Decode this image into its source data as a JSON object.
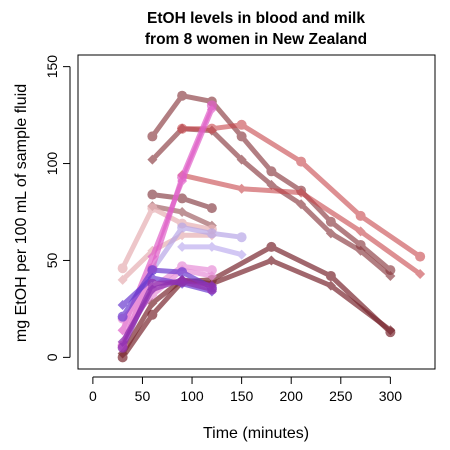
{
  "chart_data": {
    "type": "line",
    "title_lines": [
      "EtOH levels in blood and milk",
      "from 8 women in New Zealand"
    ],
    "xlabel": "Time (minutes)",
    "ylabel": "mg EtOH per 100 mL of sample fluid",
    "xlim": [
      -15,
      345
    ],
    "ylim": [
      -6,
      156
    ],
    "x_ticks": [
      0,
      50,
      100,
      150,
      200,
      250,
      300
    ],
    "y_ticks": [
      0,
      50,
      100,
      150
    ],
    "grid": false,
    "legend": "none",
    "series": [
      {
        "color": "#7A2830",
        "opacity": 0.7,
        "marker": "circle",
        "x": [
          30,
          60,
          90,
          120,
          180,
          240,
          300
        ],
        "y": [
          0,
          22,
          39,
          40,
          57,
          42,
          13
        ]
      },
      {
        "color": "#7A2830",
        "opacity": 0.7,
        "marker": "diamond",
        "x": [
          30,
          60,
          90,
          120,
          180,
          240,
          300
        ],
        "y": [
          2,
          28,
          40,
          38,
          50,
          37,
          14
        ]
      },
      {
        "color": "#8A3A40",
        "opacity": 0.65,
        "marker": "circle",
        "x": [
          60,
          90,
          120,
          150,
          180,
          210,
          240,
          270,
          300
        ],
        "y": [
          114,
          135,
          132,
          114,
          96,
          86,
          70,
          58,
          45
        ]
      },
      {
        "color": "#8A3A40",
        "opacity": 0.65,
        "marker": "diamond",
        "x": [
          60,
          90,
          120,
          150,
          180,
          210,
          240,
          270,
          300
        ],
        "y": [
          102,
          118,
          117,
          102,
          89,
          79,
          64,
          55,
          42
        ]
      },
      {
        "color": "#C8454A",
        "opacity": 0.6,
        "marker": "circle",
        "x": [
          90,
          120,
          150,
          210,
          270,
          330
        ],
        "y": [
          118,
          118,
          120,
          101,
          73,
          52
        ]
      },
      {
        "color": "#C8454A",
        "opacity": 0.6,
        "marker": "diamond",
        "x": [
          90,
          150,
          210,
          270,
          330
        ],
        "y": [
          94,
          87,
          85,
          65,
          43
        ]
      },
      {
        "color": "#7A2830",
        "opacity": 0.6,
        "marker": "circle",
        "x": [
          60,
          90,
          120
        ],
        "y": [
          84,
          82,
          77
        ]
      },
      {
        "color": "#8A3A40",
        "opacity": 0.55,
        "marker": "diamond",
        "x": [
          60,
          90,
          120
        ],
        "y": [
          78,
          75,
          68
        ]
      },
      {
        "color": "#E8B4B8",
        "opacity": 0.75,
        "marker": "circle",
        "x": [
          30,
          60,
          90,
          120
        ],
        "y": [
          46,
          77,
          69,
          66
        ]
      },
      {
        "color": "#E8B4B8",
        "opacity": 0.75,
        "marker": "diamond",
        "x": [
          30,
          60,
          90,
          120
        ],
        "y": [
          40,
          55,
          63,
          63
        ]
      },
      {
        "color": "#B8A8E8",
        "opacity": 0.7,
        "marker": "circle",
        "x": [
          60,
          90,
          120,
          150
        ],
        "y": [
          45,
          67,
          64,
          62
        ]
      },
      {
        "color": "#C0B0F0",
        "opacity": 0.7,
        "marker": "diamond",
        "x": [
          90,
          120,
          150
        ],
        "y": [
          57,
          57,
          53
        ]
      },
      {
        "color": "#E060C8",
        "opacity": 0.7,
        "marker": "circle",
        "x": [
          30,
          60,
          90,
          120
        ],
        "y": [
          6,
          46,
          93,
          130
        ]
      },
      {
        "color": "#E060C8",
        "opacity": 0.7,
        "marker": "diamond",
        "x": [
          30,
          60,
          90,
          120
        ],
        "y": [
          14,
          52,
          91,
          128
        ]
      },
      {
        "color": "#E890D8",
        "opacity": 0.7,
        "marker": "circle",
        "x": [
          30,
          60,
          90,
          120
        ],
        "y": [
          20,
          36,
          47,
          45
        ]
      },
      {
        "color": "#E890D8",
        "opacity": 0.7,
        "marker": "diamond",
        "x": [
          30,
          60,
          90,
          120
        ],
        "y": [
          14,
          32,
          45,
          42
        ]
      },
      {
        "color": "#6A3AD0",
        "opacity": 0.7,
        "marker": "circle",
        "x": [
          30,
          60,
          90,
          120
        ],
        "y": [
          21,
          45,
          44,
          36
        ]
      },
      {
        "color": "#6A3AD0",
        "opacity": 0.7,
        "marker": "diamond",
        "x": [
          30,
          60,
          90,
          120
        ],
        "y": [
          27,
          41,
          38,
          34
        ]
      },
      {
        "color": "#9030B0",
        "opacity": 0.75,
        "marker": "circle",
        "x": [
          30,
          60,
          90,
          120
        ],
        "y": [
          5,
          38,
          39,
          35
        ]
      },
      {
        "color": "#9030B0",
        "opacity": 0.75,
        "marker": "diamond",
        "x": [
          30,
          60,
          90,
          120
        ],
        "y": [
          8,
          35,
          40,
          37
        ]
      }
    ]
  }
}
